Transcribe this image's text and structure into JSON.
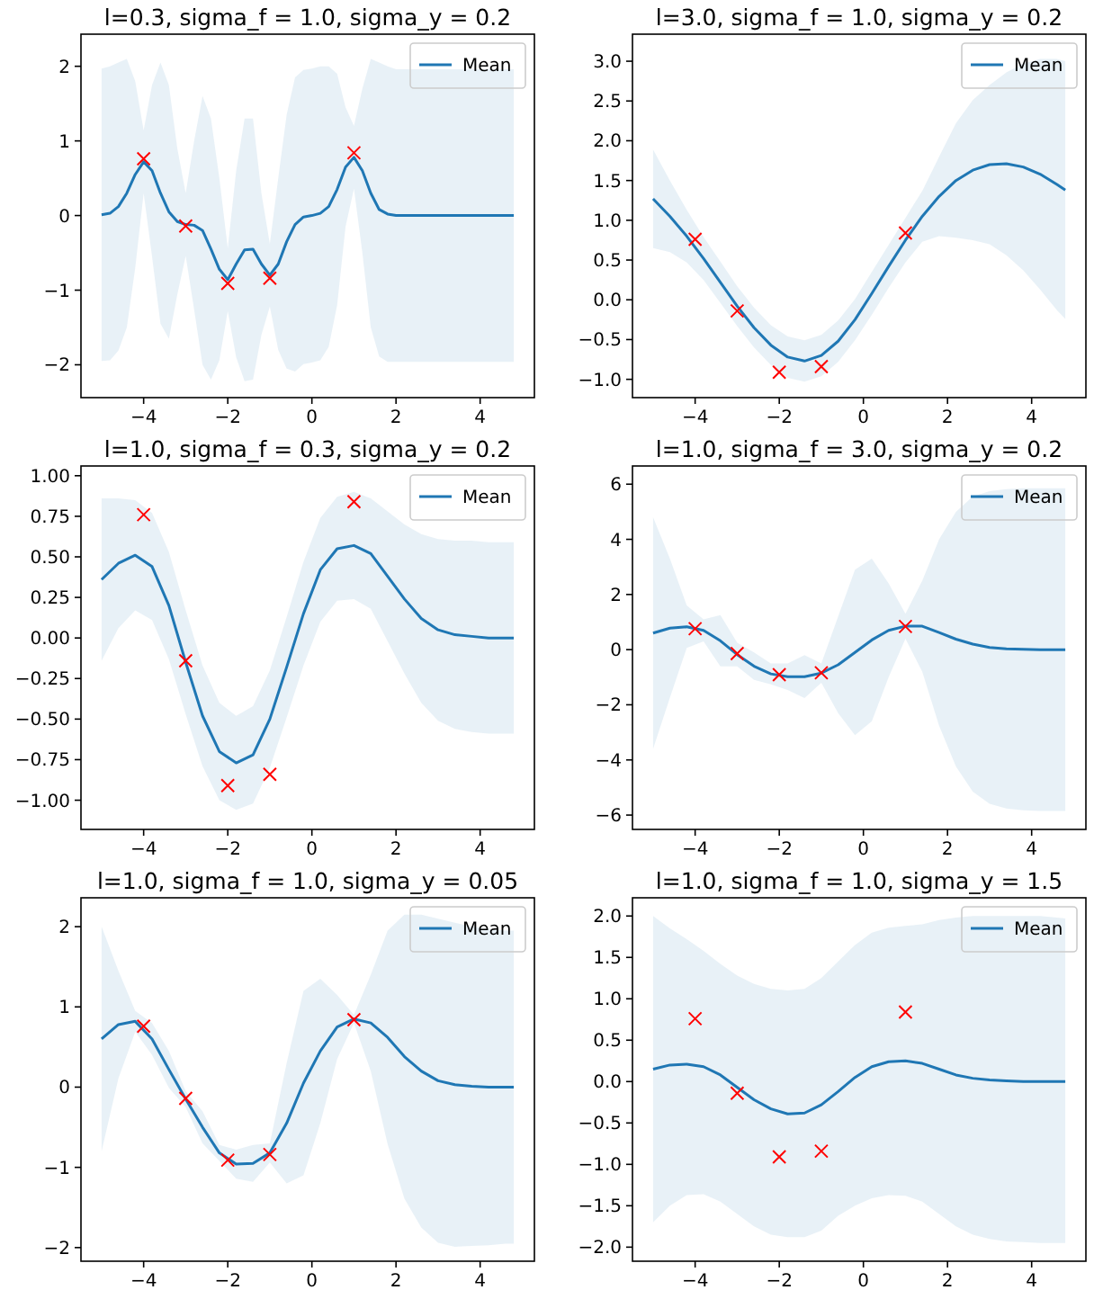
{
  "chart_data": [
    {
      "type": "line",
      "title": "l=0.3, sigma_f = 1.0, sigma_y = 0.2",
      "legend": "top right",
      "xlim": [
        -5.49,
        5.29
      ],
      "ylim": [
        -2.44,
        2.43
      ],
      "xticks": [
        -4,
        -2,
        0,
        2,
        4
      ],
      "yticks": [
        -2,
        -1,
        0,
        1,
        2
      ],
      "x": [
        -5,
        -4.8,
        -4.6,
        -4.4,
        -4.2,
        -4,
        -3.8,
        -3.6,
        -3.4,
        -3.2,
        -3,
        -2.8,
        -2.6,
        -2.4,
        -2.2,
        -2,
        -1.8,
        -1.6,
        -1.4,
        -1.2,
        -1,
        -0.8,
        -0.6,
        -0.4,
        -0.2,
        0,
        0.2,
        0.4,
        0.6,
        0.8,
        1,
        1.2,
        1.4,
        1.6,
        1.8,
        2,
        2.2,
        2.4,
        2.6,
        2.8,
        3,
        3.2,
        3.4,
        3.6,
        3.8,
        4,
        4.2,
        4.4,
        4.6,
        4.8
      ],
      "series": [
        {
          "name": "Mean",
          "type": "line",
          "color": "#1f77b4",
          "values": [
            0.01,
            0.03,
            0.12,
            0.3,
            0.55,
            0.72,
            0.6,
            0.3,
            0.05,
            -0.08,
            -0.12,
            -0.13,
            -0.2,
            -0.45,
            -0.72,
            -0.86,
            -0.65,
            -0.46,
            -0.45,
            -0.65,
            -0.8,
            -0.65,
            -0.35,
            -0.12,
            -0.02,
            0,
            0.03,
            0.12,
            0.35,
            0.65,
            0.78,
            0.6,
            0.3,
            0.08,
            0.02,
            0,
            0,
            0,
            0,
            0,
            0,
            0,
            0,
            0,
            0,
            0,
            0,
            0,
            0,
            0
          ],
          "upper": [
            1.97,
            2.0,
            2.05,
            2.1,
            1.8,
            1.14,
            1.75,
            2.05,
            1.75,
            0.9,
            0.3,
            1.0,
            1.6,
            1.3,
            0.5,
            -0.44,
            0.6,
            1.3,
            1.3,
            0.3,
            -0.38,
            0.5,
            1.35,
            1.85,
            1.95,
            1.97,
            2.0,
            2.0,
            1.9,
            1.45,
            1.2,
            1.7,
            2.1,
            2.05,
            2.0,
            1.96,
            1.96,
            1.96,
            1.96,
            1.96,
            1.96,
            1.96,
            1.96,
            1.96,
            1.96,
            1.96,
            1.96,
            1.96,
            1.96,
            1.96
          ],
          "lower": [
            -1.95,
            -1.94,
            -1.81,
            -1.5,
            -0.7,
            0.3,
            -0.55,
            -1.45,
            -1.65,
            -1.06,
            -0.54,
            -1.26,
            -2.0,
            -2.2,
            -1.94,
            -1.28,
            -1.9,
            -2.22,
            -2.2,
            -1.6,
            -1.22,
            -1.8,
            -2.05,
            -2.09,
            -1.99,
            -1.97,
            -1.94,
            -1.76,
            -1.2,
            -0.15,
            0.36,
            -0.5,
            -1.5,
            -1.89,
            -1.96,
            -1.96,
            -1.96,
            -1.96,
            -1.96,
            -1.96,
            -1.96,
            -1.96,
            -1.96,
            -1.96,
            -1.96,
            -1.96,
            -1.96,
            -1.96,
            -1.96,
            -1.96
          ]
        },
        {
          "type": "scatter",
          "marker": "cross",
          "color": "#ff0000",
          "x": [
            -4,
            -3,
            -2,
            -1,
            1
          ],
          "values": [
            0.76,
            -0.14,
            -0.91,
            -0.84,
            0.84
          ]
        }
      ]
    },
    {
      "type": "line",
      "title": "l=3.0, sigma_f = 1.0, sigma_y = 0.2",
      "legend": "top right",
      "xlim": [
        -5.49,
        5.29
      ],
      "ylim": [
        -1.23,
        3.34
      ],
      "xticks": [
        -4,
        -2,
        0,
        2,
        4
      ],
      "yticks": [
        {
          "value": -1,
          "label": "−1.0"
        },
        {
          "value": -0.5,
          "label": "−0.5"
        },
        {
          "value": 0,
          "label": "0.0"
        },
        0.5,
        {
          "value": 1,
          "label": "1.0"
        },
        1.5,
        {
          "value": 2,
          "label": "2.0"
        },
        2.5,
        {
          "value": 3,
          "label": "3.0"
        }
      ],
      "x": [
        -5,
        -4.6,
        -4.2,
        -3.8,
        -3.4,
        -3,
        -2.6,
        -2.2,
        -1.8,
        -1.4,
        -1,
        -0.6,
        -0.2,
        0.2,
        0.6,
        1,
        1.4,
        1.8,
        2.2,
        2.6,
        3,
        3.4,
        3.8,
        4.2,
        4.6,
        4.8
      ],
      "series": [
        {
          "name": "Mean",
          "type": "line",
          "color": "#1f77b4",
          "values": [
            1.27,
            1.05,
            0.8,
            0.52,
            0.22,
            -0.08,
            -0.35,
            -0.57,
            -0.72,
            -0.77,
            -0.7,
            -0.52,
            -0.25,
            0.08,
            0.42,
            0.75,
            1.05,
            1.3,
            1.5,
            1.63,
            1.7,
            1.71,
            1.67,
            1.58,
            1.45,
            1.38
          ],
          "upper": [
            1.89,
            1.5,
            1.13,
            0.79,
            0.48,
            0.17,
            -0.1,
            -0.32,
            -0.46,
            -0.51,
            -0.44,
            -0.26,
            0.01,
            0.35,
            0.69,
            1.03,
            1.37,
            1.8,
            2.22,
            2.51,
            2.7,
            2.86,
            2.97,
            3.03,
            3.03,
            3.0
          ],
          "lower": [
            0.65,
            0.6,
            0.47,
            0.25,
            -0.04,
            -0.33,
            -0.6,
            -0.82,
            -0.98,
            -1.03,
            -0.96,
            -0.78,
            -0.51,
            -0.19,
            0.15,
            0.47,
            0.73,
            0.8,
            0.78,
            0.75,
            0.7,
            0.56,
            0.37,
            0.13,
            -0.13,
            -0.24
          ]
        },
        {
          "type": "scatter",
          "marker": "cross",
          "color": "#ff0000",
          "x": [
            -4,
            -3,
            -2,
            -1,
            1
          ],
          "values": [
            0.76,
            -0.14,
            -0.91,
            -0.84,
            0.84
          ]
        }
      ]
    },
    {
      "type": "line",
      "title": "l=1.0, sigma_f = 0.3, sigma_y = 0.2",
      "legend": "top right",
      "xlim": [
        -5.49,
        5.29
      ],
      "ylim": [
        -1.18,
        1.06
      ],
      "xticks": [
        -4,
        -2,
        0,
        2,
        4
      ],
      "yticks": [
        {
          "value": -1,
          "label": "−1.00"
        },
        {
          "value": -0.75,
          "label": "−0.75"
        },
        {
          "value": -0.5,
          "label": "−0.50"
        },
        {
          "value": -0.25,
          "label": "−0.25"
        },
        {
          "value": 0,
          "label": "0.00"
        },
        0.25,
        {
          "value": 0.5,
          "label": "0.50"
        },
        0.75,
        {
          "value": 1,
          "label": "1.00"
        }
      ],
      "x": [
        -5,
        -4.6,
        -4.2,
        -3.8,
        -3.4,
        -3,
        -2.6,
        -2.2,
        -1.8,
        -1.4,
        -1,
        -0.6,
        -0.2,
        0.2,
        0.6,
        1,
        1.4,
        1.8,
        2.2,
        2.6,
        3,
        3.4,
        3.8,
        4.2,
        4.6,
        4.8
      ],
      "series": [
        {
          "name": "Mean",
          "type": "line",
          "color": "#1f77b4",
          "values": [
            0.36,
            0.46,
            0.51,
            0.44,
            0.2,
            -0.15,
            -0.48,
            -0.7,
            -0.77,
            -0.72,
            -0.5,
            -0.18,
            0.15,
            0.42,
            0.55,
            0.57,
            0.52,
            0.38,
            0.24,
            0.12,
            0.05,
            0.02,
            0.01,
            0,
            0,
            0
          ],
          "upper": [
            0.86,
            0.86,
            0.85,
            0.77,
            0.53,
            0.17,
            -0.17,
            -0.4,
            -0.48,
            -0.42,
            -0.2,
            0.13,
            0.47,
            0.74,
            0.87,
            0.9,
            0.86,
            0.78,
            0.7,
            0.64,
            0.61,
            0.6,
            0.6,
            0.59,
            0.59,
            0.59
          ],
          "lower": [
            -0.14,
            0.06,
            0.17,
            0.11,
            -0.13,
            -0.47,
            -0.79,
            -1.0,
            -1.06,
            -1.02,
            -0.8,
            -0.49,
            -0.17,
            0.1,
            0.23,
            0.24,
            0.18,
            -0.02,
            -0.22,
            -0.4,
            -0.51,
            -0.56,
            -0.58,
            -0.59,
            -0.59,
            -0.59
          ]
        },
        {
          "type": "scatter",
          "marker": "cross",
          "color": "#ff0000",
          "x": [
            -4,
            -3,
            -2,
            -1,
            1
          ],
          "values": [
            0.76,
            -0.14,
            -0.91,
            -0.84,
            0.84
          ]
        }
      ]
    },
    {
      "type": "line",
      "title": "l=1.0, sigma_f = 3.0, sigma_y = 0.2",
      "legend": "top right",
      "xlim": [
        -5.49,
        5.29
      ],
      "ylim": [
        -6.52,
        6.66
      ],
      "xticks": [
        -4,
        -2,
        0,
        2,
        4
      ],
      "yticks": [
        -6,
        -4,
        -2,
        0,
        2,
        4,
        6
      ],
      "x": [
        -5,
        -4.6,
        -4.2,
        -3.8,
        -3.4,
        -3,
        -2.6,
        -2.2,
        -1.8,
        -1.4,
        -1,
        -0.6,
        -0.2,
        0.2,
        0.6,
        1,
        1.4,
        1.8,
        2.2,
        2.6,
        3,
        3.4,
        3.8,
        4.2,
        4.6,
        4.8
      ],
      "series": [
        {
          "name": "Mean",
          "type": "line",
          "color": "#1f77b4",
          "values": [
            0.6,
            0.78,
            0.83,
            0.7,
            0.32,
            -0.18,
            -0.6,
            -0.88,
            -0.98,
            -0.98,
            -0.85,
            -0.55,
            -0.1,
            0.35,
            0.7,
            0.85,
            0.85,
            0.62,
            0.38,
            0.2,
            0.08,
            0.03,
            0.01,
            0,
            0,
            0
          ],
          "upper": [
            4.8,
            3.3,
            1.6,
            1.1,
            1.25,
            0.25,
            -0.1,
            -0.5,
            -0.5,
            -0.2,
            -0.5,
            1.2,
            2.9,
            3.3,
            2.4,
            1.3,
            2.5,
            4.0,
            5.0,
            5.55,
            5.75,
            5.82,
            5.85,
            5.85,
            5.85,
            5.85
          ],
          "lower": [
            -3.6,
            -1.74,
            0.06,
            0.3,
            -0.61,
            -0.61,
            -1.1,
            -1.26,
            -1.46,
            -1.76,
            -1.2,
            -2.3,
            -3.1,
            -2.6,
            -1.0,
            0.4,
            -0.8,
            -2.76,
            -4.24,
            -5.15,
            -5.59,
            -5.76,
            -5.83,
            -5.85,
            -5.85,
            -5.85
          ]
        },
        {
          "type": "scatter",
          "marker": "cross",
          "color": "#ff0000",
          "x": [
            -4,
            -3,
            -2,
            -1,
            1
          ],
          "values": [
            0.76,
            -0.14,
            -0.91,
            -0.84,
            0.84
          ]
        }
      ]
    },
    {
      "type": "line",
      "title": "l=1.0, sigma_f = 1.0, sigma_y = 0.05",
      "legend": "top right",
      "xlim": [
        -5.49,
        5.29
      ],
      "ylim": [
        -2.17,
        2.36
      ],
      "xticks": [
        -4,
        -2,
        0,
        2,
        4
      ],
      "yticks": [
        -2,
        -1,
        0,
        1,
        2
      ],
      "x": [
        -5,
        -4.6,
        -4.2,
        -3.8,
        -3.4,
        -3,
        -2.6,
        -2.2,
        -1.8,
        -1.4,
        -1,
        -0.6,
        -0.2,
        0.2,
        0.6,
        1,
        1.4,
        1.8,
        2.2,
        2.6,
        3,
        3.4,
        3.8,
        4.2,
        4.6,
        4.8
      ],
      "series": [
        {
          "name": "Mean",
          "type": "line",
          "color": "#1f77b4",
          "values": [
            0.6,
            0.78,
            0.82,
            0.6,
            0.22,
            -0.15,
            -0.5,
            -0.82,
            -0.96,
            -0.95,
            -0.82,
            -0.45,
            0.05,
            0.45,
            0.75,
            0.85,
            0.8,
            0.62,
            0.38,
            0.2,
            0.08,
            0.03,
            0.01,
            0,
            0,
            0
          ],
          "upper": [
            2.0,
            1.45,
            0.95,
            0.8,
            0.45,
            -0.05,
            -0.3,
            -0.72,
            -0.78,
            -0.72,
            -0.7,
            0.3,
            1.2,
            1.35,
            1.15,
            0.9,
            1.4,
            1.95,
            2.15,
            2.15,
            2.1,
            2.05,
            2.0,
            1.97,
            1.95,
            1.95
          ],
          "lower": [
            -0.8,
            0.11,
            0.69,
            0.4,
            -0.01,
            -0.25,
            -0.7,
            -0.92,
            -1.14,
            -1.18,
            -0.94,
            -1.2,
            -1.1,
            -0.45,
            0.35,
            0.8,
            0.2,
            -0.71,
            -1.39,
            -1.75,
            -1.94,
            -1.99,
            -1.98,
            -1.97,
            -1.95,
            -1.95
          ]
        },
        {
          "type": "scatter",
          "marker": "cross",
          "color": "#ff0000",
          "x": [
            -4,
            -3,
            -2,
            -1,
            1
          ],
          "values": [
            0.76,
            -0.14,
            -0.91,
            -0.84,
            0.84
          ]
        }
      ]
    },
    {
      "type": "line",
      "title": "l=1.0, sigma_f = 1.0, sigma_y = 1.5",
      "legend": "top right",
      "xlim": [
        -5.49,
        5.29
      ],
      "ylim": [
        -2.17,
        2.22
      ],
      "xticks": [
        -4,
        -2,
        0,
        2,
        4
      ],
      "yticks": [
        {
          "value": -2,
          "label": "−2.0"
        },
        {
          "value": -1.5,
          "label": "−1.5"
        },
        {
          "value": -1,
          "label": "−1.0"
        },
        {
          "value": -0.5,
          "label": "−0.5"
        },
        {
          "value": 0,
          "label": "0.0"
        },
        0.5,
        {
          "value": 1,
          "label": "1.0"
        },
        1.5,
        {
          "value": 2,
          "label": "2.0"
        }
      ],
      "x": [
        -5,
        -4.6,
        -4.2,
        -3.8,
        -3.4,
        -3,
        -2.6,
        -2.2,
        -1.8,
        -1.4,
        -1,
        -0.6,
        -0.2,
        0.2,
        0.6,
        1,
        1.4,
        1.8,
        2.2,
        2.6,
        3,
        3.4,
        3.8,
        4.2,
        4.6,
        4.8
      ],
      "series": [
        {
          "name": "Mean",
          "type": "line",
          "color": "#1f77b4",
          "values": [
            0.15,
            0.2,
            0.21,
            0.18,
            0.08,
            -0.07,
            -0.22,
            -0.33,
            -0.39,
            -0.38,
            -0.28,
            -0.12,
            0.05,
            0.18,
            0.24,
            0.25,
            0.22,
            0.15,
            0.08,
            0.04,
            0.02,
            0.01,
            0,
            0,
            0,
            0
          ],
          "upper": [
            2.0,
            1.85,
            1.72,
            1.58,
            1.42,
            1.28,
            1.18,
            1.12,
            1.1,
            1.12,
            1.25,
            1.45,
            1.65,
            1.8,
            1.86,
            1.88,
            1.9,
            1.95,
            1.98,
            2.0,
            2.0,
            2.0,
            2.0,
            2.0,
            1.98,
            1.97
          ],
          "lower": [
            -1.7,
            -1.5,
            -1.37,
            -1.36,
            -1.45,
            -1.6,
            -1.75,
            -1.85,
            -1.88,
            -1.88,
            -1.8,
            -1.62,
            -1.5,
            -1.41,
            -1.37,
            -1.38,
            -1.45,
            -1.6,
            -1.75,
            -1.85,
            -1.9,
            -1.93,
            -1.94,
            -1.95,
            -1.95,
            -1.95
          ]
        },
        {
          "type": "scatter",
          "marker": "cross",
          "color": "#ff0000",
          "x": [
            -4,
            -3,
            -2,
            -1,
            1
          ],
          "values": [
            0.76,
            -0.14,
            -0.91,
            -0.84,
            0.84
          ]
        }
      ]
    }
  ]
}
